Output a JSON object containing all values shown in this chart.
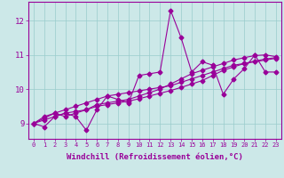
{
  "xlabel": "Windchill (Refroidissement éolien,°C)",
  "ylabel": "",
  "background_color": "#cce8e8",
  "grid_color": "#99cccc",
  "line_color": "#990099",
  "marker": "D",
  "markersize": 2.5,
  "linewidth": 0.8,
  "xlim": [
    -0.5,
    23.5
  ],
  "ylim": [
    8.55,
    12.55
  ],
  "xticks": [
    0,
    1,
    2,
    3,
    4,
    5,
    6,
    7,
    8,
    9,
    10,
    11,
    12,
    13,
    14,
    15,
    16,
    17,
    18,
    19,
    20,
    21,
    22,
    23
  ],
  "yticks": [
    9,
    10,
    11,
    12
  ],
  "series": [
    [
      9.0,
      8.9,
      9.2,
      9.3,
      9.2,
      8.8,
      9.4,
      9.8,
      9.7,
      9.6,
      10.4,
      10.45,
      10.5,
      12.3,
      11.5,
      10.5,
      10.8,
      10.7,
      9.85,
      10.3,
      10.6,
      11.0,
      10.5,
      10.5
    ],
    [
      9.0,
      9.2,
      9.3,
      9.2,
      9.3,
      9.4,
      9.55,
      9.6,
      9.65,
      9.7,
      9.8,
      9.9,
      10.0,
      10.15,
      10.3,
      10.45,
      10.55,
      10.65,
      10.75,
      10.85,
      10.92,
      10.98,
      11.0,
      10.95
    ],
    [
      9.0,
      9.15,
      9.3,
      9.4,
      9.5,
      9.6,
      9.7,
      9.8,
      9.85,
      9.9,
      9.95,
      10.0,
      10.05,
      10.1,
      10.2,
      10.3,
      10.4,
      10.5,
      10.6,
      10.7,
      10.75,
      10.8,
      10.85,
      10.9
    ],
    [
      9.0,
      9.1,
      9.2,
      9.3,
      9.35,
      9.4,
      9.5,
      9.55,
      9.6,
      9.65,
      9.72,
      9.8,
      9.88,
      9.96,
      10.05,
      10.15,
      10.25,
      10.4,
      10.55,
      10.65,
      10.75,
      10.82,
      10.88,
      10.92
    ]
  ],
  "xtick_fontsize": 5.0,
  "ytick_fontsize": 6.5,
  "xlabel_fontsize": 6.5
}
